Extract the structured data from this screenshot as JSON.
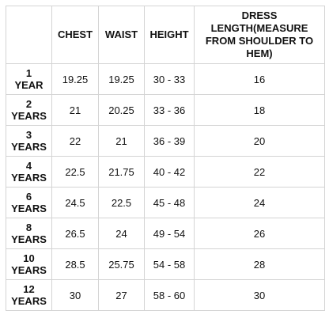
{
  "table": {
    "headers": [
      "CHEST",
      "WAIST",
      "HEIGHT",
      "DRESS LENGTH(MEASURE FROM SHOULDER TO HEM)"
    ],
    "rows": [
      [
        "1 YEAR",
        "19.25",
        "19.25",
        "30 - 33",
        "16"
      ],
      [
        "2 YEARS",
        "21",
        "20.25",
        "33 - 36",
        "18"
      ],
      [
        "3 YEARS",
        "22",
        "21",
        "36 - 39",
        "20"
      ],
      [
        "4 YEARS",
        "22.5",
        "21.75",
        "40 - 42",
        "22"
      ],
      [
        "6 YEARS",
        "24.5",
        "22.5",
        "45 - 48",
        "24"
      ],
      [
        "8 YEARS",
        "26.5",
        "24",
        "49 - 54",
        "26"
      ],
      [
        "10 YEARS",
        "28.5",
        "25.75",
        "54 - 58",
        "28"
      ],
      [
        "12 YEARS",
        "30",
        "27",
        "58 - 60",
        "30"
      ]
    ]
  }
}
